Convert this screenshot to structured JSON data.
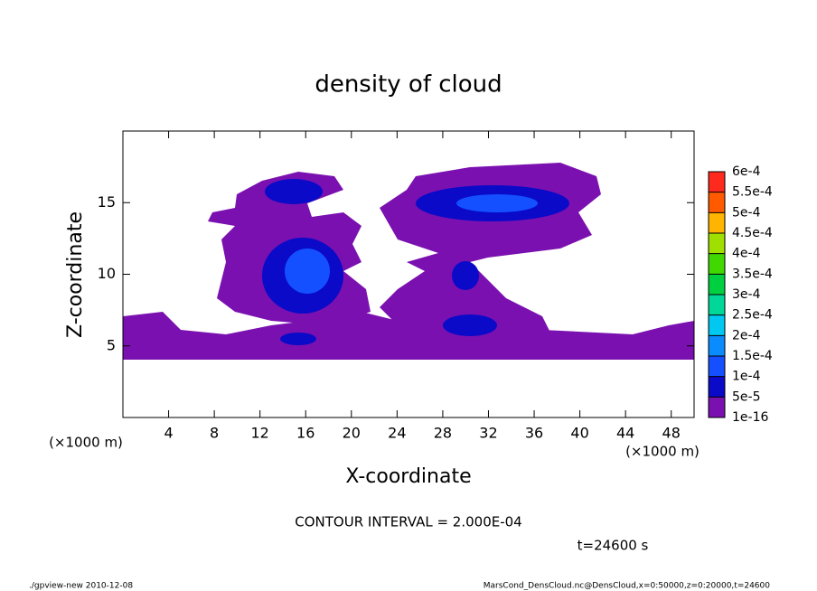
{
  "chart_data": {
    "type": "contour",
    "title": "density of cloud",
    "xlabel": "X-coordinate",
    "ylabel": "Z-coordinate",
    "x_unit": "(×1000 m)",
    "y_unit": "(×1000 m)",
    "xlim": [
      0,
      50
    ],
    "xticks": [
      4,
      8,
      12,
      16,
      20,
      24,
      28,
      32,
      36,
      40,
      44,
      48
    ],
    "ylim": [
      0,
      20
    ],
    "yticks": [
      5,
      10,
      15
    ],
    "colorbar": {
      "levels": [
        {
          "value": 1e-16,
          "label": "1e-16"
        },
        {
          "value": 5e-05,
          "label": "5e-5"
        },
        {
          "value": 0.0001,
          "label": "1e-4"
        },
        {
          "value": 0.00015,
          "label": "1.5e-4"
        },
        {
          "value": 0.0002,
          "label": "2e-4"
        },
        {
          "value": 0.00025,
          "label": "2.5e-4"
        },
        {
          "value": 0.0003,
          "label": "3e-4"
        },
        {
          "value": 0.00035,
          "label": "3.5e-4"
        },
        {
          "value": 0.0004,
          "label": "4e-4"
        },
        {
          "value": 0.00045,
          "label": "4.5e-4"
        },
        {
          "value": 0.0005,
          "label": "5e-4"
        },
        {
          "value": 0.00055,
          "label": "5.5e-4"
        },
        {
          "value": 0.0006,
          "label": "6e-4"
        }
      ],
      "colors": [
        "#7a10b0",
        "#0a0ac8",
        "#1450ff",
        "#0a8cff",
        "#00c8f0",
        "#00d89a",
        "#00d040",
        "#40d800",
        "#a0e000",
        "#ffb400",
        "#ff5a00",
        "#ff2a1e",
        "#ff8080"
      ]
    },
    "annotations": [
      "CONTOUR INTERVAL = 2.000E-04",
      "t=24600 s"
    ],
    "footer_left": "./gpview-new   2010-12-08",
    "footer_right": "MarsCond_DensCloud.nc@DensCloud,x=0:50000,z=0:20000,t=24600"
  }
}
